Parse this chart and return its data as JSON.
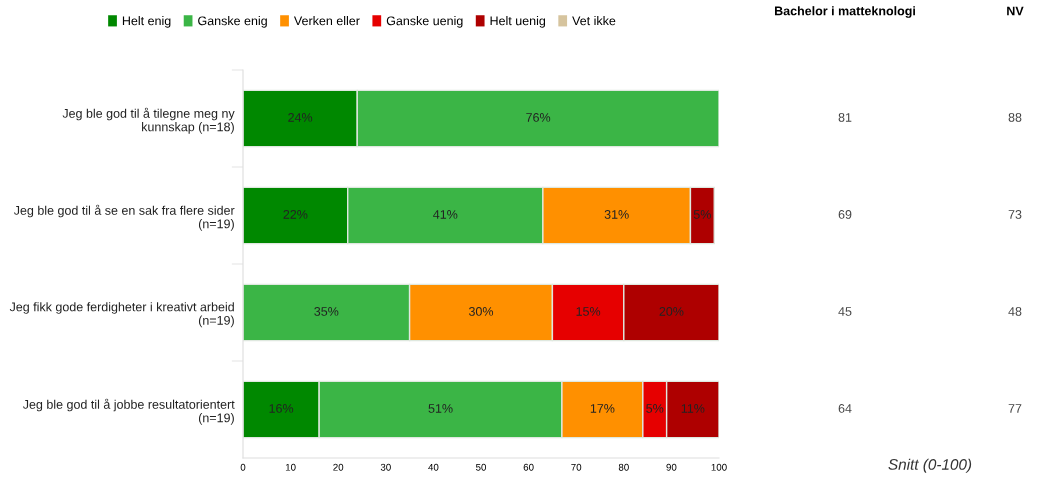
{
  "chart_data": [
    {
      "type": "bar",
      "orientation": "horizontal",
      "stacked": true,
      "categories": [
        "Jeg ble god til å tilegne meg ny\nkunnskap (n=18)",
        "Jeg ble god til å se en sak fra flere sider\n(n=19)",
        "Jeg fikk gode ferdigheter i kreativt arbeid\n(n=19)",
        "Jeg ble god til å jobbe resultatorientert\n(n=19)"
      ],
      "series": [
        {
          "name": "Helt enig",
          "color": "#008800",
          "values": [
            24,
            22,
            null,
            16
          ],
          "value_labels": [
            "24%",
            "22%",
            null,
            "16%"
          ]
        },
        {
          "name": "Ganske enig",
          "color": "#3bb546",
          "values": [
            76,
            41,
            35,
            51
          ],
          "value_labels": [
            "76%",
            "41%",
            "35%",
            "51%"
          ]
        },
        {
          "name": "Verken eller",
          "color": "#ff9000",
          "values": [
            null,
            31,
            30,
            17
          ],
          "value_labels": [
            null,
            "31%",
            "30%",
            "17%"
          ]
        },
        {
          "name": "Ganske uenig",
          "color": "#e60000",
          "values": [
            null,
            null,
            15,
            5
          ],
          "value_labels": [
            null,
            null,
            "15%",
            "5%"
          ]
        },
        {
          "name": "Helt uenig",
          "color": "#ae0000",
          "values": [
            null,
            5,
            20,
            11
          ],
          "value_labels": [
            null,
            "5%",
            "20%",
            "11%"
          ]
        },
        {
          "name": "Vet ikke",
          "color": "#d6c49e",
          "values": [
            null,
            null,
            null,
            null
          ]
        }
      ],
      "xlim": [
        0,
        100
      ],
      "xticks": [
        0,
        10,
        20,
        30,
        40,
        50,
        60,
        70,
        80,
        90,
        100
      ],
      "grid": false,
      "legend": "top"
    },
    {
      "type": "other",
      "xlabel": "Snitt (0-100)",
      "categories": [
        "Bachelor i matteknologi",
        "NV"
      ],
      "annotations": [
        "81",
        "88",
        "69",
        "73",
        "45",
        "48",
        "64",
        "77"
      ]
    }
  ]
}
